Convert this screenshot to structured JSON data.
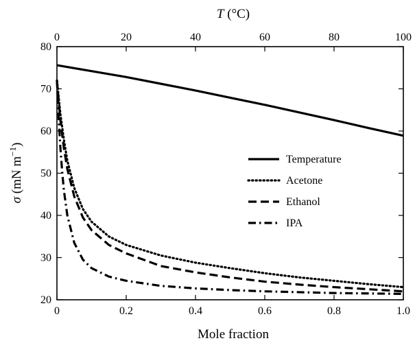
{
  "chart_data": {
    "type": "line",
    "xlabel": "Mole fraction",
    "x2label_symbol": "T",
    "x2label_unit": " (°C)",
    "ylabel_symbol": "σ",
    "ylabel_unit_open": " (mN m",
    "ylabel_unit_exp": "−1",
    "ylabel_unit_close": ")",
    "xlim": [
      0,
      1.0
    ],
    "x2lim": [
      0,
      100
    ],
    "ylim": [
      20,
      80
    ],
    "x_ticks": [
      0,
      0.2,
      0.4,
      0.6,
      0.8,
      1.0
    ],
    "x_tick_labels": [
      "0",
      "0.2",
      "0.4",
      "0.6",
      "0.8",
      "1.0"
    ],
    "x2_ticks": [
      0,
      20,
      40,
      60,
      80,
      100
    ],
    "x2_tick_labels": [
      "0",
      "20",
      "40",
      "60",
      "80",
      "100"
    ],
    "y_ticks": [
      20,
      30,
      40,
      50,
      60,
      70,
      80
    ],
    "y_tick_labels": [
      "20",
      "30",
      "40",
      "50",
      "60",
      "70",
      "80"
    ],
    "grid": false,
    "legend_position": "center-right",
    "series": [
      {
        "name": "Temperature",
        "axis": "top",
        "style": "solid",
        "color": "#000000",
        "x": [
          0,
          10,
          20,
          30,
          40,
          50,
          60,
          70,
          80,
          90,
          100
        ],
        "y": [
          75.6,
          74.2,
          72.8,
          71.2,
          69.6,
          67.9,
          66.2,
          64.4,
          62.6,
          60.7,
          58.9
        ]
      },
      {
        "name": "Acetone",
        "axis": "bottom",
        "style": "dotted",
        "color": "#000000",
        "x": [
          0,
          0.005,
          0.01,
          0.02,
          0.03,
          0.05,
          0.075,
          0.1,
          0.15,
          0.2,
          0.3,
          0.4,
          0.5,
          0.6,
          0.7,
          0.8,
          0.9,
          1.0
        ],
        "y": [
          72.0,
          68.0,
          64.0,
          58.0,
          53.0,
          46.5,
          41.5,
          38.5,
          35.0,
          33.0,
          30.5,
          28.8,
          27.5,
          26.3,
          25.3,
          24.5,
          23.7,
          23.0
        ]
      },
      {
        "name": "Ethanol",
        "axis": "bottom",
        "style": "dashed",
        "color": "#000000",
        "x": [
          0,
          0.005,
          0.01,
          0.02,
          0.03,
          0.05,
          0.075,
          0.1,
          0.15,
          0.2,
          0.3,
          0.4,
          0.5,
          0.6,
          0.7,
          0.8,
          0.9,
          1.0
        ],
        "y": [
          72.0,
          67.0,
          62.5,
          56.0,
          51.0,
          44.5,
          39.5,
          36.5,
          33.0,
          31.0,
          28.0,
          26.5,
          25.3,
          24.3,
          23.6,
          23.0,
          22.5,
          22.0
        ]
      },
      {
        "name": "IPA",
        "axis": "bottom",
        "style": "dashdot",
        "color": "#000000",
        "x": [
          0,
          0.005,
          0.01,
          0.015,
          0.02,
          0.03,
          0.05,
          0.075,
          0.1,
          0.15,
          0.2,
          0.3,
          0.4,
          0.5,
          0.6,
          0.7,
          0.8,
          0.9,
          1.0
        ],
        "y": [
          72.0,
          63.0,
          56.0,
          50.5,
          46.0,
          40.0,
          33.5,
          29.5,
          27.5,
          25.5,
          24.5,
          23.3,
          22.7,
          22.3,
          22.0,
          21.8,
          21.6,
          21.5,
          21.4
        ]
      }
    ]
  }
}
